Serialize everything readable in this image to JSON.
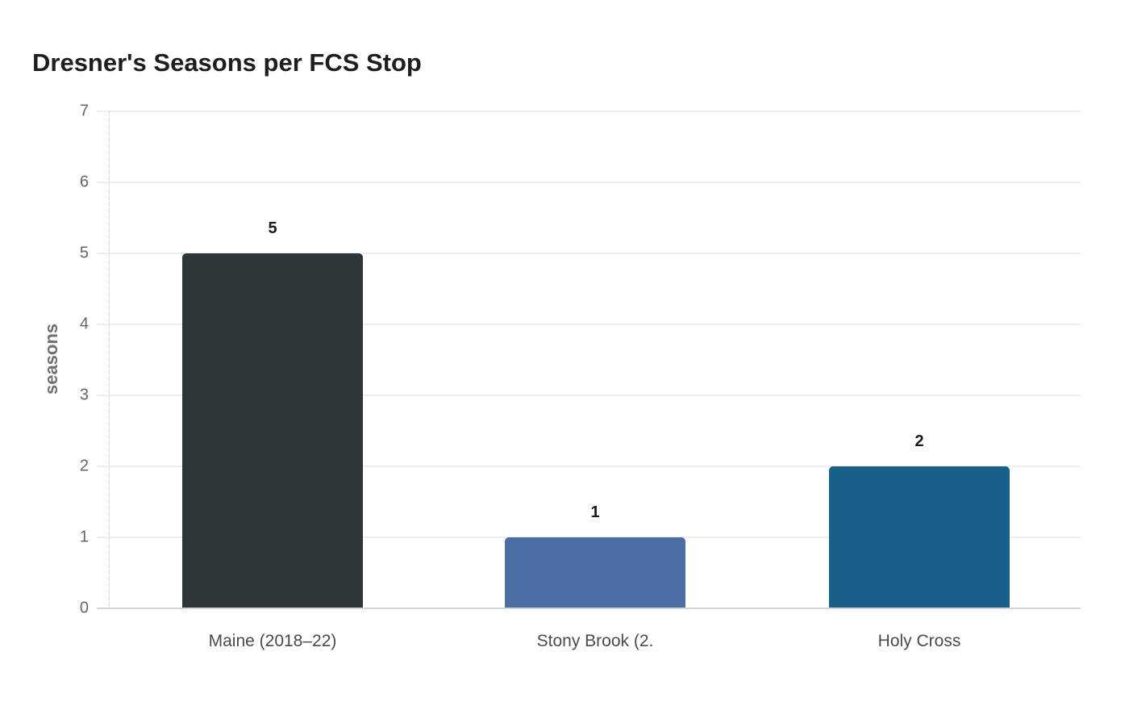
{
  "title": "Dresner's Seasons per FCS Stop",
  "chart_data": {
    "type": "bar",
    "title": "Dresner's Seasons per FCS Stop",
    "xlabel": "",
    "ylabel": "seasons",
    "categories": [
      "Maine (2018–22)",
      "Stony Brook (2.",
      "Holy Cross"
    ],
    "values": [
      5,
      1,
      2
    ],
    "colors": [
      "#2e3538",
      "#4a6da2",
      "#186087"
    ],
    "ylim": [
      0,
      7
    ],
    "yticks": [
      0,
      1,
      2,
      3,
      4,
      5,
      6,
      7
    ],
    "grid": true,
    "legend": null,
    "data_labels": true
  },
  "axis": {
    "ylabel": "seasons",
    "yticks": [
      "0",
      "1",
      "2",
      "3",
      "4",
      "5",
      "6",
      "7"
    ]
  },
  "bars": [
    {
      "label": "Maine (2018–22)",
      "value_label": "5",
      "value": 5,
      "color": "#2e3538"
    },
    {
      "label": "Stony Brook (2.",
      "value_label": "1",
      "value": 1,
      "color": "#4a6da2"
    },
    {
      "label": "Holy Cross",
      "value_label": "2",
      "value": 2,
      "color": "#186087"
    }
  ]
}
